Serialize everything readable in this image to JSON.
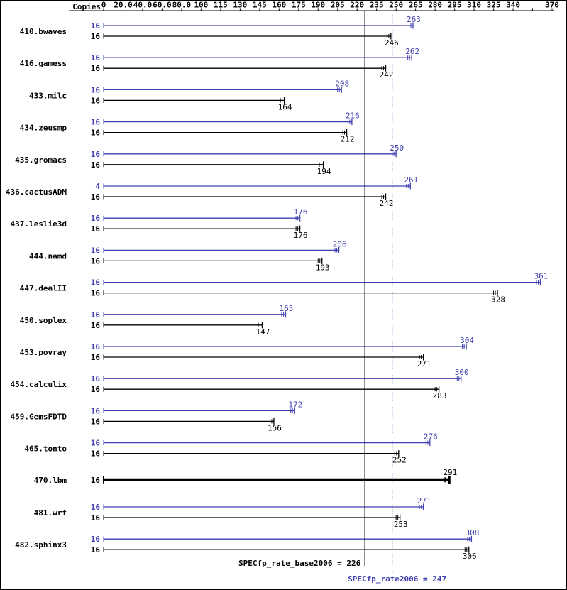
{
  "header": {
    "copies_label": "Copies"
  },
  "footer": {
    "base_label": "SPECfp_rate_base2006 = 226",
    "peak_label": "SPECfp_rate2006 = 247"
  },
  "chart_data": {
    "type": "bar",
    "orientation": "horizontal",
    "title": "",
    "xlabel": "",
    "ylabel": "Copies",
    "colors": {
      "peak": "#4040b0",
      "base": "#000000"
    },
    "x_axis": {
      "range": [
        0,
        370
      ],
      "ticks": [
        0,
        20,
        40,
        60,
        80,
        100,
        115,
        130,
        145,
        160,
        175,
        190,
        205,
        220,
        235,
        250,
        265,
        280,
        295,
        310,
        325,
        340,
        355,
        370
      ],
      "labels": [
        "0",
        "20.0",
        "40.0",
        "60.0",
        "80.0",
        "100",
        "115",
        "130",
        "145",
        "160",
        "175",
        "190",
        "205",
        "220",
        "235",
        "250",
        "265",
        "280",
        "295",
        "310",
        "325",
        "340",
        "",
        "370"
      ]
    },
    "benchmarks": [
      {
        "name": "410.bwaves",
        "peak": {
          "copies": 16,
          "ratio": 263
        },
        "base": {
          "copies": 16,
          "ratio": 246
        }
      },
      {
        "name": "416.gamess",
        "peak": {
          "copies": 16,
          "ratio": 262
        },
        "base": {
          "copies": 16,
          "ratio": 242
        }
      },
      {
        "name": "433.milc",
        "peak": {
          "copies": 16,
          "ratio": 208
        },
        "base": {
          "copies": 16,
          "ratio": 164
        }
      },
      {
        "name": "434.zeusmp",
        "peak": {
          "copies": 16,
          "ratio": 216
        },
        "base": {
          "copies": 16,
          "ratio": 212
        }
      },
      {
        "name": "435.gromacs",
        "peak": {
          "copies": 16,
          "ratio": 250
        },
        "base": {
          "copies": 16,
          "ratio": 194
        }
      },
      {
        "name": "436.cactusADM",
        "peak": {
          "copies": 4,
          "ratio": 261
        },
        "base": {
          "copies": 16,
          "ratio": 242
        }
      },
      {
        "name": "437.leslie3d",
        "peak": {
          "copies": 16,
          "ratio": 176
        },
        "base": {
          "copies": 16,
          "ratio": 176
        }
      },
      {
        "name": "444.namd",
        "peak": {
          "copies": 16,
          "ratio": 206
        },
        "base": {
          "copies": 16,
          "ratio": 193
        }
      },
      {
        "name": "447.dealII",
        "peak": {
          "copies": 16,
          "ratio": 361
        },
        "base": {
          "copies": 16,
          "ratio": 328
        }
      },
      {
        "name": "450.soplex",
        "peak": {
          "copies": 16,
          "ratio": 165
        },
        "base": {
          "copies": 16,
          "ratio": 147
        }
      },
      {
        "name": "453.povray",
        "peak": {
          "copies": 16,
          "ratio": 304
        },
        "base": {
          "copies": 16,
          "ratio": 271
        }
      },
      {
        "name": "454.calculix",
        "peak": {
          "copies": 16,
          "ratio": 300
        },
        "base": {
          "copies": 16,
          "ratio": 283
        }
      },
      {
        "name": "459.GemsFDTD",
        "peak": {
          "copies": 16,
          "ratio": 172
        },
        "base": {
          "copies": 16,
          "ratio": 156
        }
      },
      {
        "name": "465.tonto",
        "peak": {
          "copies": 16,
          "ratio": 276
        },
        "base": {
          "copies": 16,
          "ratio": 252
        }
      },
      {
        "name": "470.lbm",
        "single": true,
        "base": {
          "copies": 16,
          "ratio": 291
        }
      },
      {
        "name": "481.wrf",
        "peak": {
          "copies": 16,
          "ratio": 271
        },
        "base": {
          "copies": 16,
          "ratio": 253
        }
      },
      {
        "name": "482.sphinx3",
        "peak": {
          "copies": 16,
          "ratio": 308
        },
        "base": {
          "copies": 16,
          "ratio": 306
        }
      }
    ],
    "reference_lines": {
      "base": {
        "value": 226,
        "label": "SPECfp_rate_base2006 = 226",
        "style": "solid"
      },
      "peak": {
        "value": 247,
        "label": "SPECfp_rate2006 = 247",
        "style": "dotted"
      }
    }
  }
}
